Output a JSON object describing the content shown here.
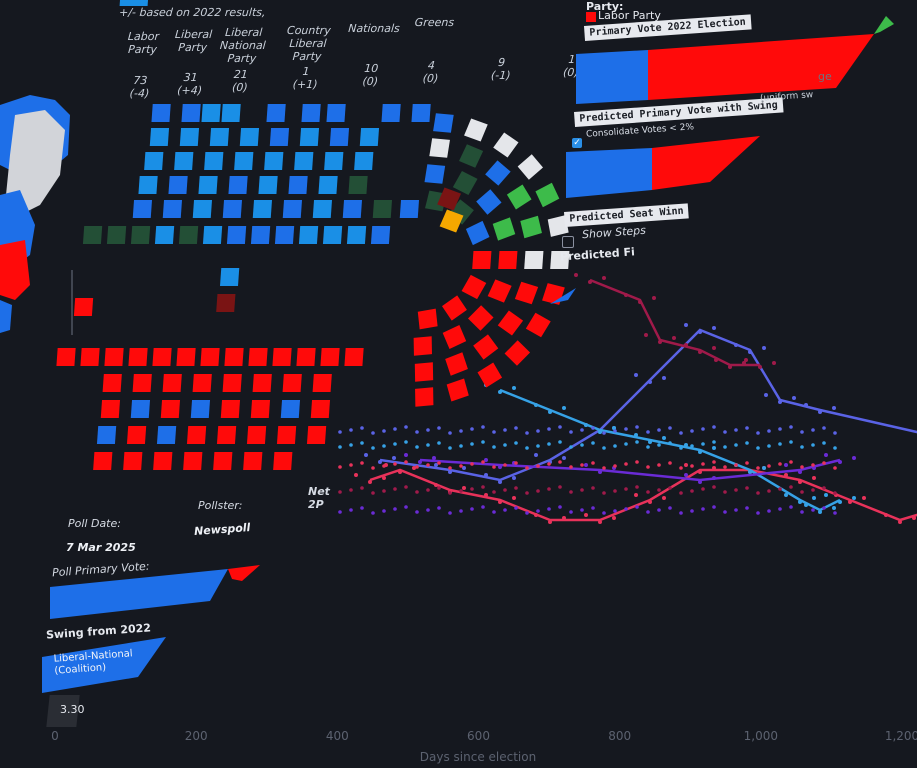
{
  "seat_panel": {
    "subtitle": "+/- based on 2022 results,",
    "columns": [
      {
        "name": "Labor\nParty",
        "count": "73",
        "change": "(-4)"
      },
      {
        "name": "Liberal\nParty",
        "count": "31",
        "change": "(+4)"
      },
      {
        "name": "Liberal\nNational\nParty",
        "count": "21",
        "change": "(0)"
      },
      {
        "name": "Country\nLiberal\nParty",
        "count": "1",
        "change": "(+1)"
      },
      {
        "name": "Nationals",
        "count": "10",
        "change": "(0)"
      },
      {
        "name": "Greens",
        "count": "4",
        "change": "(0)"
      },
      {
        "name": "",
        "count": "9",
        "change": "(-1)"
      },
      {
        "name": "",
        "count": "1",
        "change": "(0)"
      }
    ]
  },
  "right_panel": {
    "party_label": "Party:",
    "selected_party": "Labor Party",
    "primary_vote_2022": "Primary Vote 2022 Election",
    "cut_text": "ge",
    "predicted_primary": "Predicted Primary Vote with Swing",
    "uniform_swing": "(uniform sw",
    "consolidate": "Consolidate Votes < 2%",
    "predicted_seat": "Predicted Seat Winn",
    "show_steps": "Show Steps",
    "predicted_f": "Predicted Fi"
  },
  "info_panel": {
    "poll_date_label": "Poll Date:",
    "pollster_label": "Pollster:",
    "net_label": "Net 2P",
    "poll_date": "7 Mar 2025",
    "pollster": "Newspoll",
    "primary_vote_label": "Poll Primary Vote:",
    "swing_label": "Swing from 2022",
    "coalition": "Liberal-National\n(Coalition)",
    "swing_value": "3.30"
  },
  "colors": {
    "labor": "#ff0a0a",
    "liberal": "#1e6fe8",
    "lnp": "#1a8fe6",
    "nationals": "#234f36",
    "greens": "#3dbb4a",
    "other": "#e4e6ea",
    "bg": "#15181f"
  },
  "chart_data": {
    "type": "scatter",
    "xlabel": "Days since election",
    "x_ticks": [
      "0",
      "200",
      "400",
      "600",
      "800",
      "1,000",
      "1,200"
    ],
    "xlim": [
      0,
      1200
    ],
    "series": [
      {
        "color": "#e8325a",
        "points": [
          [
            370,
            480
          ],
          [
            400,
            470
          ],
          [
            450,
            490
          ],
          [
            500,
            500
          ],
          [
            550,
            520
          ],
          [
            600,
            520
          ],
          [
            650,
            500
          ],
          [
            700,
            470
          ],
          [
            750,
            470
          ],
          [
            800,
            480
          ],
          [
            850,
            500
          ],
          [
            900,
            520
          ],
          [
            1000,
            490
          ],
          [
            1050,
            460
          ]
        ]
      },
      {
        "color": "#5a63e6",
        "points": [
          [
            380,
            460
          ],
          [
            450,
            470
          ],
          [
            500,
            480
          ],
          [
            550,
            460
          ],
          [
            600,
            430
          ],
          [
            650,
            380
          ],
          [
            700,
            330
          ],
          [
            750,
            350
          ],
          [
            780,
            400
          ],
          [
            820,
            410
          ],
          [
            1040,
            460
          ]
        ]
      },
      {
        "color": "#36a2e6",
        "points": [
          [
            500,
            390
          ],
          [
            550,
            410
          ],
          [
            600,
            430
          ],
          [
            650,
            440
          ],
          [
            700,
            450
          ],
          [
            750,
            470
          ],
          [
            800,
            500
          ],
          [
            820,
            510
          ],
          [
            840,
            500
          ]
        ]
      },
      {
        "color": "#a01a4a",
        "points": [
          [
            590,
            280
          ],
          [
            640,
            300
          ],
          [
            660,
            340
          ],
          [
            700,
            350
          ],
          [
            730,
            365
          ],
          [
            760,
            365
          ]
        ]
      },
      {
        "color": "#6a2bd6",
        "points": [
          [
            420,
            460
          ],
          [
            500,
            465
          ],
          [
            600,
            470
          ],
          [
            700,
            480
          ],
          [
            800,
            470
          ],
          [
            840,
            460
          ]
        ]
      }
    ]
  }
}
